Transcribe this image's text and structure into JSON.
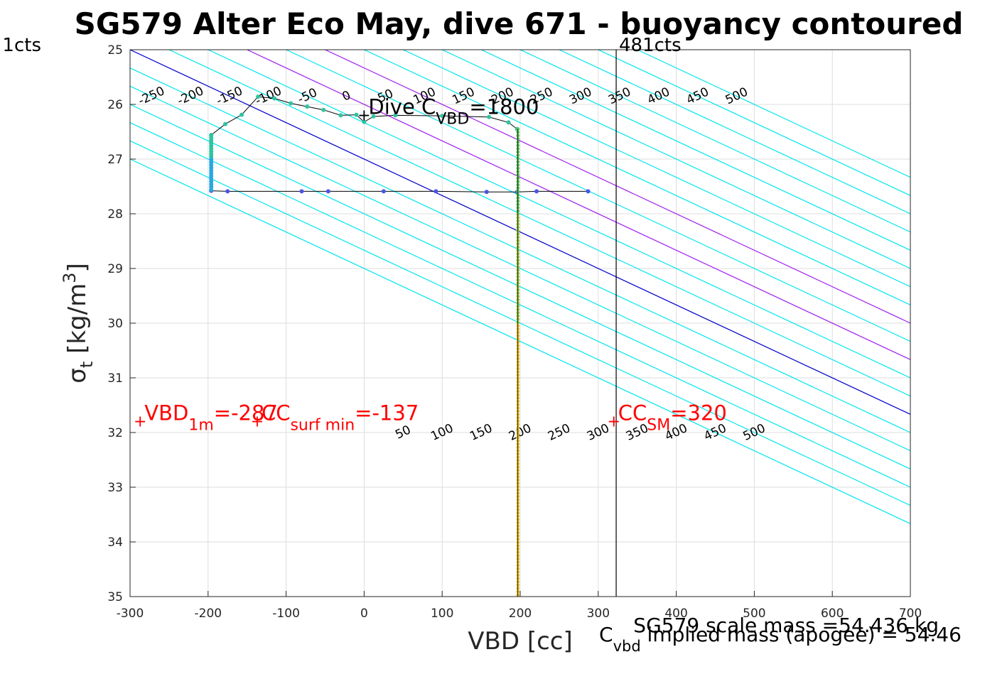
{
  "chart_data": {
    "type": "scatter",
    "title": "SG579 Alter Eco May, dive 671 - buoyancy contoured",
    "xlabel": "VBD [cc]",
    "ylabel_symbol": "σ",
    "ylabel_sub": "t",
    "ylabel_unit": "[kg/m",
    "ylabel_sup": "3",
    "ylabel_close": "]",
    "xlim": [
      -300,
      700
    ],
    "ylim": [
      25,
      35
    ],
    "y_reversed": true,
    "grid": true,
    "xticks": [
      "-300",
      "-200",
      "-100",
      "0",
      "100",
      "200",
      "300",
      "400",
      "500",
      "600",
      "700"
    ],
    "yticks": [
      "25",
      "26",
      "27",
      "28",
      "29",
      "30",
      "31",
      "32",
      "33",
      "34",
      "35"
    ],
    "top_axis_labels": {
      "left": "1cts",
      "right": "481cts"
    },
    "vertical_line_x": 323,
    "buoyancy_contours": {
      "slope_cc_per_kgm3": 150,
      "levels": [
        -250,
        -200,
        -150,
        -100,
        -50,
        0,
        50,
        100,
        150,
        200,
        250,
        300,
        350,
        400,
        450,
        500
      ],
      "upper_labels": [
        "-250",
        "-200",
        "-150",
        "-100",
        "-50",
        "0",
        "50",
        "100",
        "150",
        "200",
        "250",
        "300",
        "350",
        "400",
        "450",
        "500"
      ],
      "lower_labels": [
        "50",
        "100",
        "150",
        "200",
        "250",
        "300",
        "350",
        "400",
        "450",
        "500"
      ],
      "highlighted": [
        {
          "level": -150,
          "color": "#0000cc"
        },
        {
          "level": 0,
          "color": "#a020f0"
        },
        {
          "level": 100,
          "color": "#a020f0"
        }
      ],
      "default_color": "#00e5ee"
    },
    "profile_series": [
      {
        "vbd": 196,
        "sigma": 26.45
      },
      {
        "vbd": 185,
        "sigma": 26.33
      },
      {
        "vbd": 160,
        "sigma": 26.23
      },
      {
        "vbd": 100,
        "sigma": 26.21
      },
      {
        "vbd": 40,
        "sigma": 26.2
      },
      {
        "vbd": 12,
        "sigma": 26.22
      },
      {
        "vbd": 0,
        "sigma": 26.32
      },
      {
        "vbd": -10,
        "sigma": 26.19
      },
      {
        "vbd": -30,
        "sigma": 26.2
      },
      {
        "vbd": -52,
        "sigma": 26.1
      },
      {
        "vbd": -73,
        "sigma": 26.04
      },
      {
        "vbd": -94,
        "sigma": 25.98
      },
      {
        "vbd": -115,
        "sigma": 25.89
      },
      {
        "vbd": -136,
        "sigma": 25.86
      },
      {
        "vbd": -157,
        "sigma": 26.19
      },
      {
        "vbd": -178,
        "sigma": 26.36
      },
      {
        "vbd": -196,
        "sigma": 26.56
      },
      {
        "vbd": -196,
        "sigma": 27.58
      },
      {
        "vbd": -175,
        "sigma": 27.59
      },
      {
        "vbd": -80,
        "sigma": 27.59
      },
      {
        "vbd": -46,
        "sigma": 27.59
      },
      {
        "vbd": 25,
        "sigma": 27.59
      },
      {
        "vbd": 92,
        "sigma": 27.59
      },
      {
        "vbd": 157,
        "sigma": 27.6
      },
      {
        "vbd": 196,
        "sigma": 27.6
      },
      {
        "vbd": 221,
        "sigma": 27.59
      },
      {
        "vbd": 287,
        "sigma": 27.59
      }
    ],
    "column_series": {
      "vbd": 197,
      "sigma_from": 26.45,
      "sigma_to": 35.0
    },
    "markers": [
      {
        "label": "Dive C",
        "sub": "VBD",
        "suffix": "=1800",
        "x": 0,
        "y": 26.2,
        "color": "#000000"
      },
      {
        "label": "VBD",
        "sub": "1m",
        "suffix": "=-287",
        "x": -287,
        "y": 31.8,
        "color": "#ff0000"
      },
      {
        "label": "CC",
        "sub": "surf min",
        "suffix": "=-137",
        "x": -137,
        "y": 31.8,
        "color": "#ff0000"
      },
      {
        "label": "CC",
        "sub": "SM",
        "suffix": "=320",
        "x": 320,
        "y": 31.8,
        "color": "#ff0000"
      }
    ],
    "footer": {
      "scale_mass": "SG579 scale mass =54.436 kg",
      "cvbd_main": "C",
      "cvbd_sub": "vbd",
      "implied_mass": "implied mass (apogee) = 54.46"
    }
  }
}
